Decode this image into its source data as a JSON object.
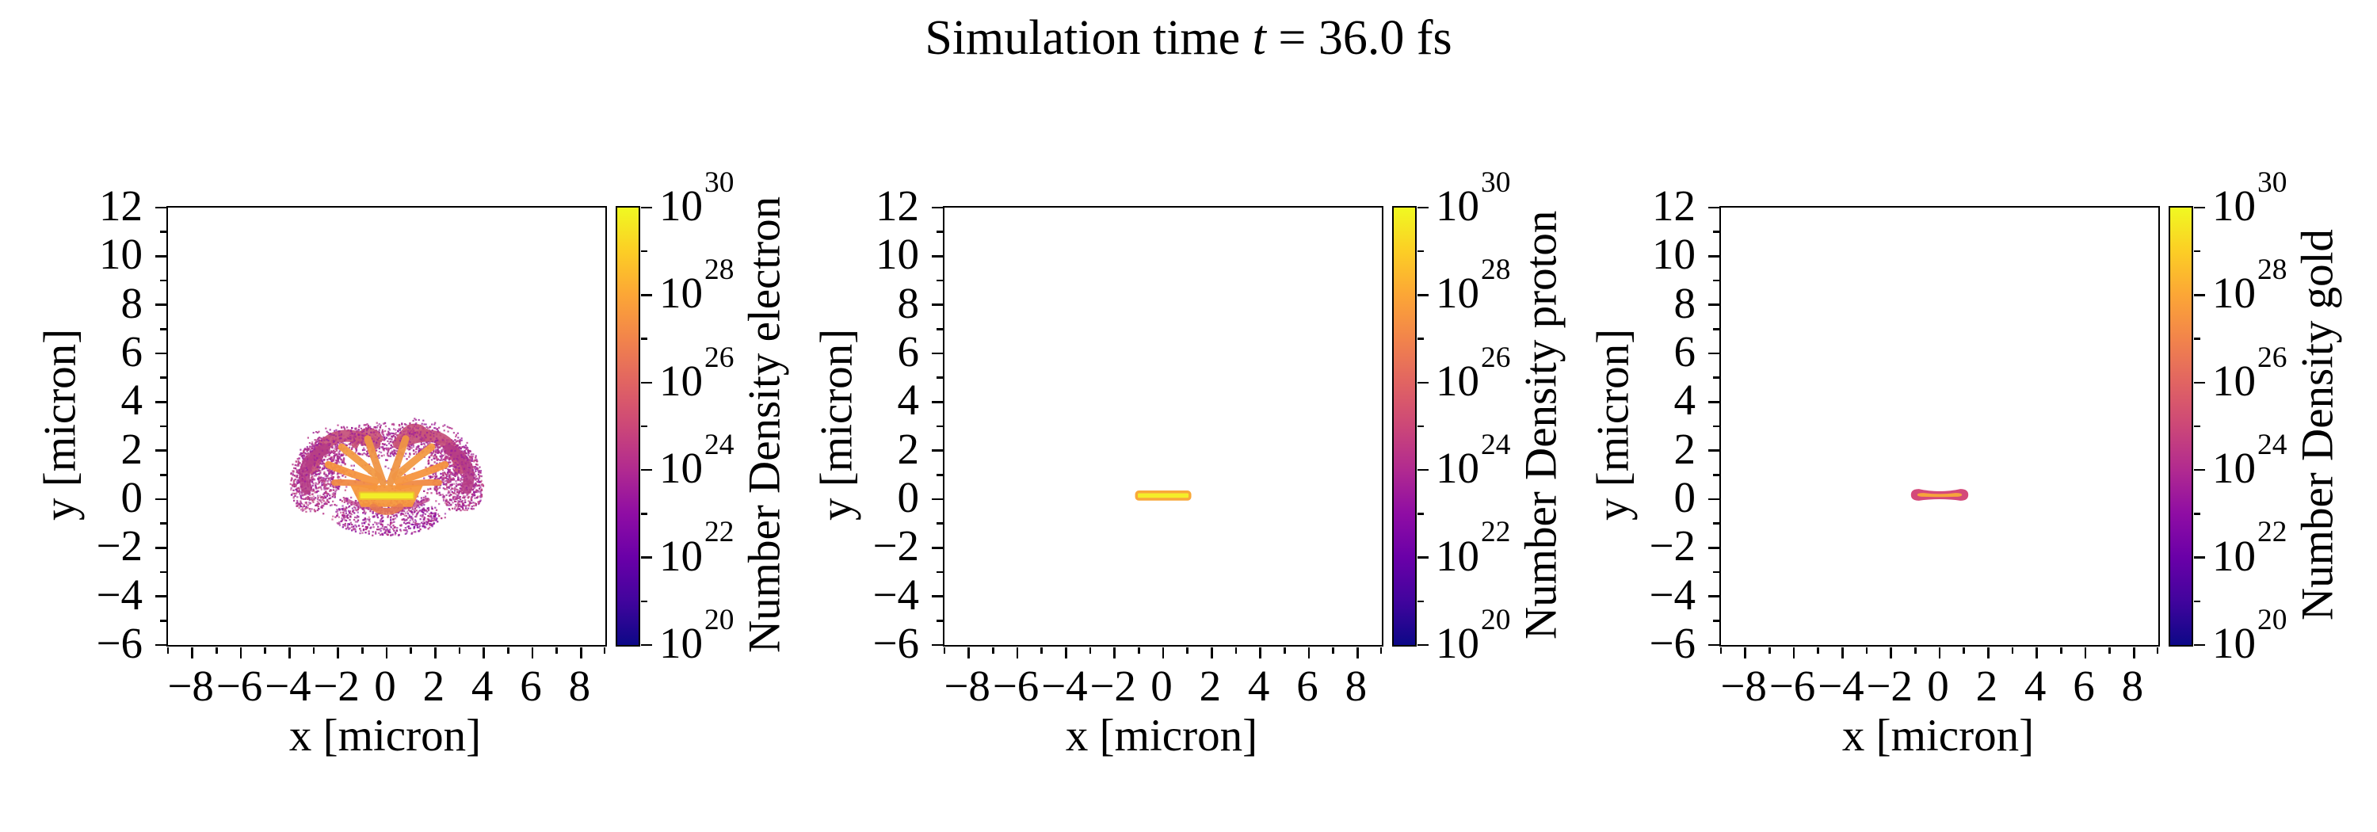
{
  "title": {
    "prefix": "Simulation time ",
    "var": "t",
    "suffix": " = 36.0 fs"
  },
  "axes": {
    "xlabel": "x [micron]",
    "ylabel": "y [micron]",
    "xlim": [
      -9,
      9
    ],
    "ylim": [
      -6,
      12
    ],
    "xticks_major": [
      -8,
      -6,
      -4,
      -2,
      0,
      2,
      4,
      6,
      8
    ],
    "xticks_minor": [
      -9,
      -7,
      -5,
      -3,
      -1,
      1,
      3,
      5,
      7,
      9
    ],
    "yticks_major": [
      12,
      10,
      8,
      6,
      4,
      2,
      0,
      -2,
      -4,
      -6
    ],
    "yticks_minor": [
      11,
      9,
      7,
      5,
      3,
      1,
      -1,
      -3,
      -5
    ]
  },
  "colorbar": {
    "base": "10",
    "exponents_top_to_bottom": [
      30,
      28,
      26,
      24,
      22,
      20
    ],
    "minor_exponents": [
      29,
      27,
      25,
      23,
      21
    ],
    "vmin_exp": 20,
    "vmax_exp": 30,
    "cmap": "plasma"
  },
  "colors": {
    "background": "#ffffff",
    "axis": "#000000",
    "plasma_stops": [
      "#0d0887",
      "#41049d",
      "#6a00a8",
      "#8f0da4",
      "#b12a90",
      "#cc4778",
      "#e16462",
      "#f2844b",
      "#fca636",
      "#fcce25",
      "#f0f921"
    ]
  },
  "panels": [
    {
      "id": "electron",
      "cbar_label": "Number Density electron"
    },
    {
      "id": "proton",
      "cbar_label": "Number Density proton"
    },
    {
      "id": "gold",
      "cbar_label": "Number Density gold"
    }
  ],
  "chart_data": [
    {
      "type": "scatter",
      "species": "electron",
      "xlabel": "x [micron]",
      "ylabel": "y [micron]",
      "xlim": [
        -9,
        9
      ],
      "ylim": [
        -6,
        12
      ],
      "color_scale": {
        "scale": "log",
        "vmin_exp": 20,
        "vmax_exp": 30,
        "cmap": "plasma",
        "label": "Number Density electron"
      },
      "features": [
        {
          "kind": "dots",
          "cx": 0,
          "cy": 0.8,
          "rx": 3.6,
          "ry": 2.1,
          "rot": 0,
          "n": 420,
          "seed": 15,
          "colors": [
            "#9c1f9b",
            "#a62c8e",
            "#b8378a",
            "#8e15a0",
            "#c44f82"
          ]
        },
        {
          "kind": "dots",
          "cx": -2.85,
          "cy": 1.0,
          "rx": 1.05,
          "ry": 1.6,
          "rot": -22,
          "n": 800,
          "seed": 11,
          "colors": [
            "#9c1f9b",
            "#a62c8e",
            "#b8378a",
            "#c04985"
          ]
        },
        {
          "kind": "dots",
          "cx": 2.85,
          "cy": 1.0,
          "rx": 1.05,
          "ry": 1.6,
          "rot": 22,
          "n": 800,
          "seed": 12,
          "colors": [
            "#9c1f9b",
            "#a62c8e",
            "#b8378a",
            "#c04985"
          ]
        },
        {
          "kind": "dots",
          "cx": 0,
          "cy": -0.72,
          "rx": 2.2,
          "ry": 0.8,
          "rot": 0,
          "n": 550,
          "seed": 13,
          "colors": [
            "#9c1f9b",
            "#a62c8e",
            "#8e15a0",
            "#b8378a"
          ]
        },
        {
          "kind": "dots",
          "cx": 0,
          "cy": 2.45,
          "rx": 2.4,
          "ry": 0.7,
          "rot": 0,
          "n": 380,
          "seed": 14,
          "colors": [
            "#a62c8e",
            "#9c1f9b",
            "#b8378a"
          ]
        },
        {
          "kind": "arc",
          "p0": [
            -1.7,
            -0.02
          ],
          "c": [
            0,
            -0.85
          ],
          "p1": [
            1.7,
            -0.02
          ],
          "w": 0.16,
          "color": "#bb3f88",
          "opacity": 0.75,
          "speckle": 90,
          "seed": 27
        },
        {
          "kind": "arc",
          "p0": [
            -3.05,
            1.28
          ],
          "c": [
            -2.5,
            3.25
          ],
          "p1": [
            -0.5,
            2.3
          ],
          "w": 0.5,
          "color": "#c44f78",
          "opacity": 0.92,
          "speckle": 150,
          "seed": 21
        },
        {
          "kind": "arc",
          "p0": [
            3.05,
            1.28
          ],
          "c": [
            2.5,
            3.25
          ],
          "p1": [
            0.5,
            2.3
          ],
          "w": 0.5,
          "color": "#c44f78",
          "opacity": 0.92,
          "speckle": 150,
          "seed": 22
        },
        {
          "kind": "arc",
          "p0": [
            -3.3,
            0.45
          ],
          "c": [
            -3.65,
            1.55
          ],
          "p1": [
            -2.55,
            2.05
          ],
          "w": 0.45,
          "color": "#b63d85",
          "opacity": 0.9,
          "speckle": 120,
          "seed": 23
        },
        {
          "kind": "arc",
          "p0": [
            3.3,
            0.45
          ],
          "c": [
            3.65,
            1.55
          ],
          "p1": [
            2.55,
            2.05
          ],
          "w": 0.45,
          "color": "#b63d85",
          "opacity": 0.9,
          "speckle": 120,
          "seed": 24
        },
        {
          "kind": "arc",
          "p0": [
            -1.3,
            2.25
          ],
          "c": [
            -0.85,
            3.2
          ],
          "p1": [
            -0.3,
            2.5
          ],
          "w": 0.3,
          "color": "#c95577",
          "opacity": 0.9,
          "speckle": 60,
          "seed": 25
        },
        {
          "kind": "arc",
          "p0": [
            0.5,
            2.35
          ],
          "c": [
            1.05,
            3.4
          ],
          "p1": [
            1.75,
            2.55
          ],
          "w": 0.36,
          "color": "#c95577",
          "opacity": 0.9,
          "speckle": 70,
          "seed": 26
        },
        {
          "kind": "arc",
          "p0": [
            -0.5,
            0.52
          ],
          "c": [
            -1.3,
            0.72
          ],
          "p1": [
            -2.15,
            0.68
          ],
          "w": 0.26,
          "color": "#f08a45",
          "opacity": 0.95
        },
        {
          "kind": "arc",
          "p0": [
            -0.45,
            0.72
          ],
          "c": [
            -1.5,
            1.05
          ],
          "p1": [
            -2.4,
            1.42
          ],
          "w": 0.3,
          "color": "#f5953f",
          "opacity": 0.95
        },
        {
          "kind": "arc",
          "p0": [
            -0.35,
            0.92
          ],
          "c": [
            -1.15,
            1.6
          ],
          "p1": [
            -1.85,
            2.15
          ],
          "w": 0.3,
          "color": "#f29a43",
          "opacity": 0.95
        },
        {
          "kind": "arc",
          "p0": [
            -0.15,
            0.68
          ],
          "c": [
            -0.5,
            1.65
          ],
          "p1": [
            -0.78,
            2.48
          ],
          "w": 0.3,
          "color": "#ef9545",
          "opacity": 0.95
        },
        {
          "kind": "arc",
          "p0": [
            0.5,
            0.52
          ],
          "c": [
            1.3,
            0.72
          ],
          "p1": [
            2.15,
            0.68
          ],
          "w": 0.26,
          "color": "#f08a45",
          "opacity": 0.95
        },
        {
          "kind": "arc",
          "p0": [
            0.45,
            0.72
          ],
          "c": [
            1.5,
            1.05
          ],
          "p1": [
            2.4,
            1.42
          ],
          "w": 0.3,
          "color": "#f5953f",
          "opacity": 0.95
        },
        {
          "kind": "arc",
          "p0": [
            0.35,
            0.92
          ],
          "c": [
            1.15,
            1.6
          ],
          "p1": [
            1.85,
            2.15
          ],
          "w": 0.3,
          "color": "#f29a43",
          "opacity": 0.95
        },
        {
          "kind": "arc",
          "p0": [
            0.15,
            0.68
          ],
          "c": [
            0.5,
            1.65
          ],
          "p1": [
            0.78,
            2.48
          ],
          "w": 0.3,
          "color": "#ef9545",
          "opacity": 0.95
        },
        {
          "kind": "poly",
          "pts": [
            [
              -1.5,
              0.58
            ],
            [
              1.5,
              0.58
            ],
            [
              1.05,
              -0.32
            ],
            [
              -1.05,
              -0.32
            ]
          ],
          "color": "#f5973c",
          "opacity": 0.95
        },
        {
          "kind": "arc",
          "p0": [
            -0.55,
            -0.32
          ],
          "c": [
            0,
            -0.7
          ],
          "p1": [
            0.55,
            -0.32
          ],
          "w": 0.28,
          "color": "#e97c4e",
          "opacity": 0.85
        },
        {
          "kind": "rect",
          "x": [
            -1.12,
            1.12
          ],
          "y": [
            0,
            0.28
          ],
          "fill": "#f2ee28",
          "stroke": "#eec02e",
          "sw": 2,
          "r": 1
        }
      ]
    },
    {
      "type": "scatter",
      "species": "proton",
      "xlabel": "x [micron]",
      "ylabel": "y [micron]",
      "xlim": [
        -9,
        9
      ],
      "ylim": [
        -6,
        12
      ],
      "color_scale": {
        "scale": "log",
        "vmin_exp": 20,
        "vmax_exp": 30,
        "cmap": "plasma",
        "label": "Number Density proton"
      },
      "features": [
        {
          "kind": "rect",
          "x": [
            -1.1,
            1.1
          ],
          "y": [
            0,
            0.3
          ],
          "fill": "#f4ee29",
          "stroke": "#f9a83a",
          "sw": 3.5,
          "r": 3
        }
      ]
    },
    {
      "type": "scatter",
      "species": "gold",
      "xlabel": "x [micron]",
      "ylabel": "y [micron]",
      "xlim": [
        -9,
        9
      ],
      "ylim": [
        -6,
        12
      ],
      "color_scale": {
        "scale": "log",
        "vmin_exp": 20,
        "vmax_exp": 30,
        "cmap": "plasma",
        "label": "Number Density gold"
      },
      "features": [
        {
          "kind": "bone",
          "x_half": 1.18,
          "y_top_end": 0.42,
          "y_bot_end": -0.06,
          "y_top_mid": 0.3,
          "y_bot_mid": 0.02,
          "outline": "#d4497a",
          "fill": "#f6a43c"
        }
      ]
    }
  ]
}
